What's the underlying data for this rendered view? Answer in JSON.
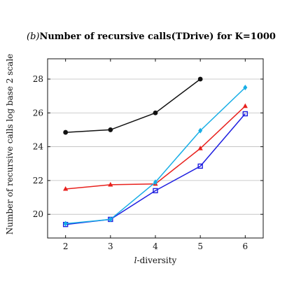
{
  "chart_data": {
    "type": "line",
    "title_prefix": "(b)",
    "title": "Number of recursive calls(TDrive) for K=1000",
    "xlabel": "l-diversity",
    "xlabel_italic_part": "l",
    "xlabel_rest": "-diversity",
    "ylabel": "Number of recursive calls log base 2 scale",
    "x": [
      2,
      3,
      4,
      5,
      6
    ],
    "xlim": [
      1.6,
      6.4
    ],
    "ylim": [
      18.6,
      29.2
    ],
    "xticks": [
      2,
      3,
      4,
      5,
      6
    ],
    "yticks": [
      20,
      22,
      24,
      26,
      28
    ],
    "grid": "horizontal",
    "legend": "none",
    "series": [
      {
        "color": "#111111",
        "marker": "circle",
        "x": [
          2,
          3,
          4,
          5
        ],
        "values": [
          24.85,
          25.0,
          26.0,
          28.0
        ]
      },
      {
        "color": "#e8211d",
        "marker": "triangle",
        "x": [
          2,
          3,
          4,
          5,
          6
        ],
        "values": [
          21.5,
          21.75,
          21.8,
          23.9,
          26.4
        ]
      },
      {
        "color": "#1f1fe0",
        "marker": "square",
        "x": [
          2,
          3,
          4,
          5,
          6
        ],
        "values": [
          19.4,
          19.7,
          21.4,
          22.85,
          25.95
        ]
      },
      {
        "color": "#18aee6",
        "marker": "diamond",
        "x": [
          2,
          3,
          4,
          5,
          6
        ],
        "values": [
          19.45,
          19.7,
          21.9,
          24.95,
          27.5
        ]
      }
    ]
  }
}
